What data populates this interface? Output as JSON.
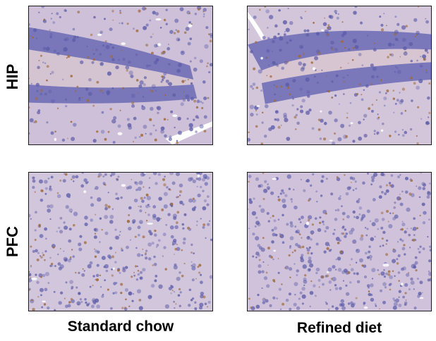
{
  "row_labels": {
    "top": "HIP",
    "bottom": "PFC"
  },
  "column_labels": {
    "left": "Standard chow",
    "right": "Refined diet"
  },
  "colors": {
    "tissue_background": "#cfc3db",
    "nuclei_stain": "#5a5aa8",
    "dab_stain": "#a06a3a",
    "frame": "#1a1a1a"
  }
}
